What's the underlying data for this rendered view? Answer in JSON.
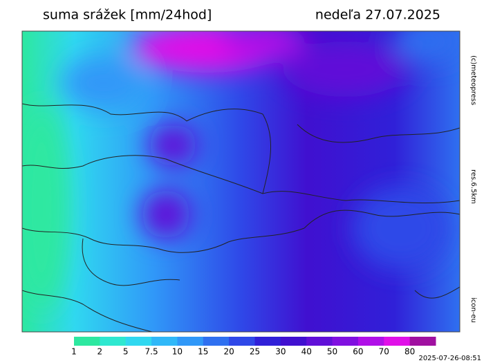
{
  "header": {
    "title": "suma srážek [mm/24hod]",
    "date": "nedeľa 27.07.2025"
  },
  "side_labels": {
    "copyright": "(c)meteopress",
    "resolution": "res.6.5km",
    "model": "icon-eu"
  },
  "timestamp": "2025-07-26-08:51",
  "legend": {
    "levels": [
      1,
      2,
      5,
      7.5,
      10,
      15,
      20,
      25,
      30,
      40,
      50,
      60,
      70,
      80
    ],
    "colors": [
      "#2de8a0",
      "#2ee8d0",
      "#30d8f0",
      "#30b8f8",
      "#3098f8",
      "#2f70f0",
      "#2f48e8",
      "#3020d8",
      "#4010d0",
      "#6010d8",
      "#8010e0",
      "#b010e8",
      "#e010e8",
      "#a010a0"
    ]
  }
}
